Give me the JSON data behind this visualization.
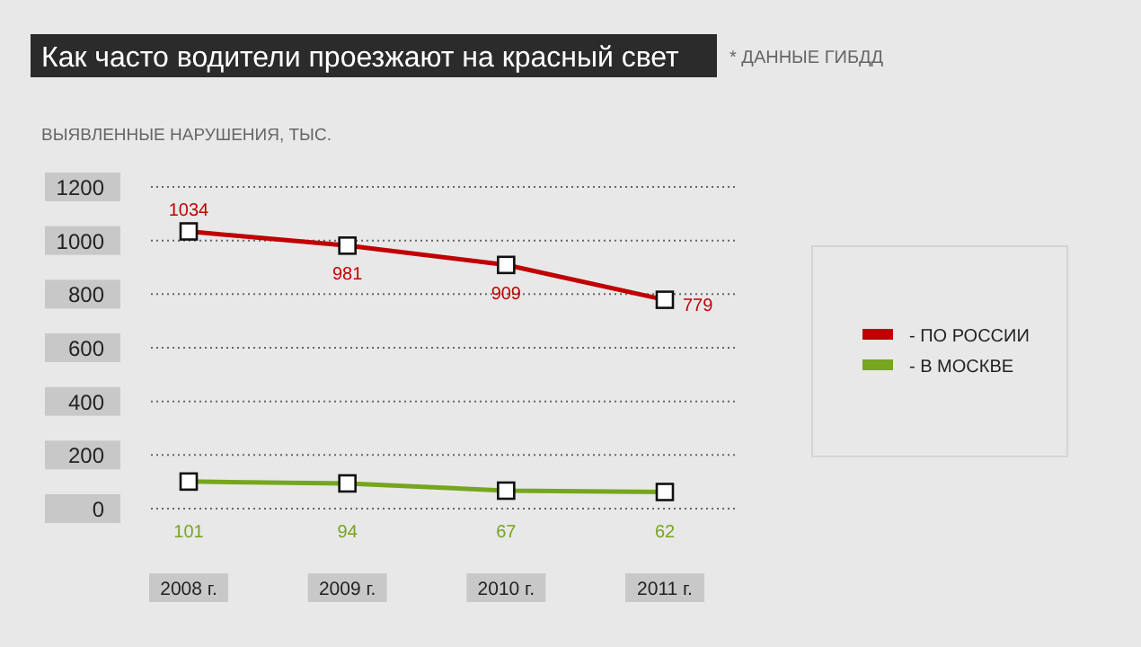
{
  "chart_data": {
    "type": "line",
    "title": "Как часто водители проезжают на красный свет",
    "subtitle": "* ДАННЫЕ ГИБДД",
    "ylabel": "ВЫЯВЛЕННЫЕ НАРУШЕНИЯ, ТЫС.",
    "categories": [
      "2008 г.",
      "2009 г.",
      "2010 г.",
      "2011 г."
    ],
    "series": [
      {
        "name": "- ПО РОССИИ",
        "color": "#c00000",
        "values": [
          1034,
          981,
          909,
          779
        ]
      },
      {
        "name": "- В МОСКВЕ",
        "color": "#76a51e",
        "values": [
          101,
          94,
          67,
          62
        ]
      }
    ],
    "ylim": [
      0,
      1200
    ],
    "yticks": [
      0,
      200,
      400,
      600,
      800,
      1000,
      1200
    ],
    "grid": "y",
    "legend": "right",
    "marker": "square",
    "data_labels": true
  }
}
